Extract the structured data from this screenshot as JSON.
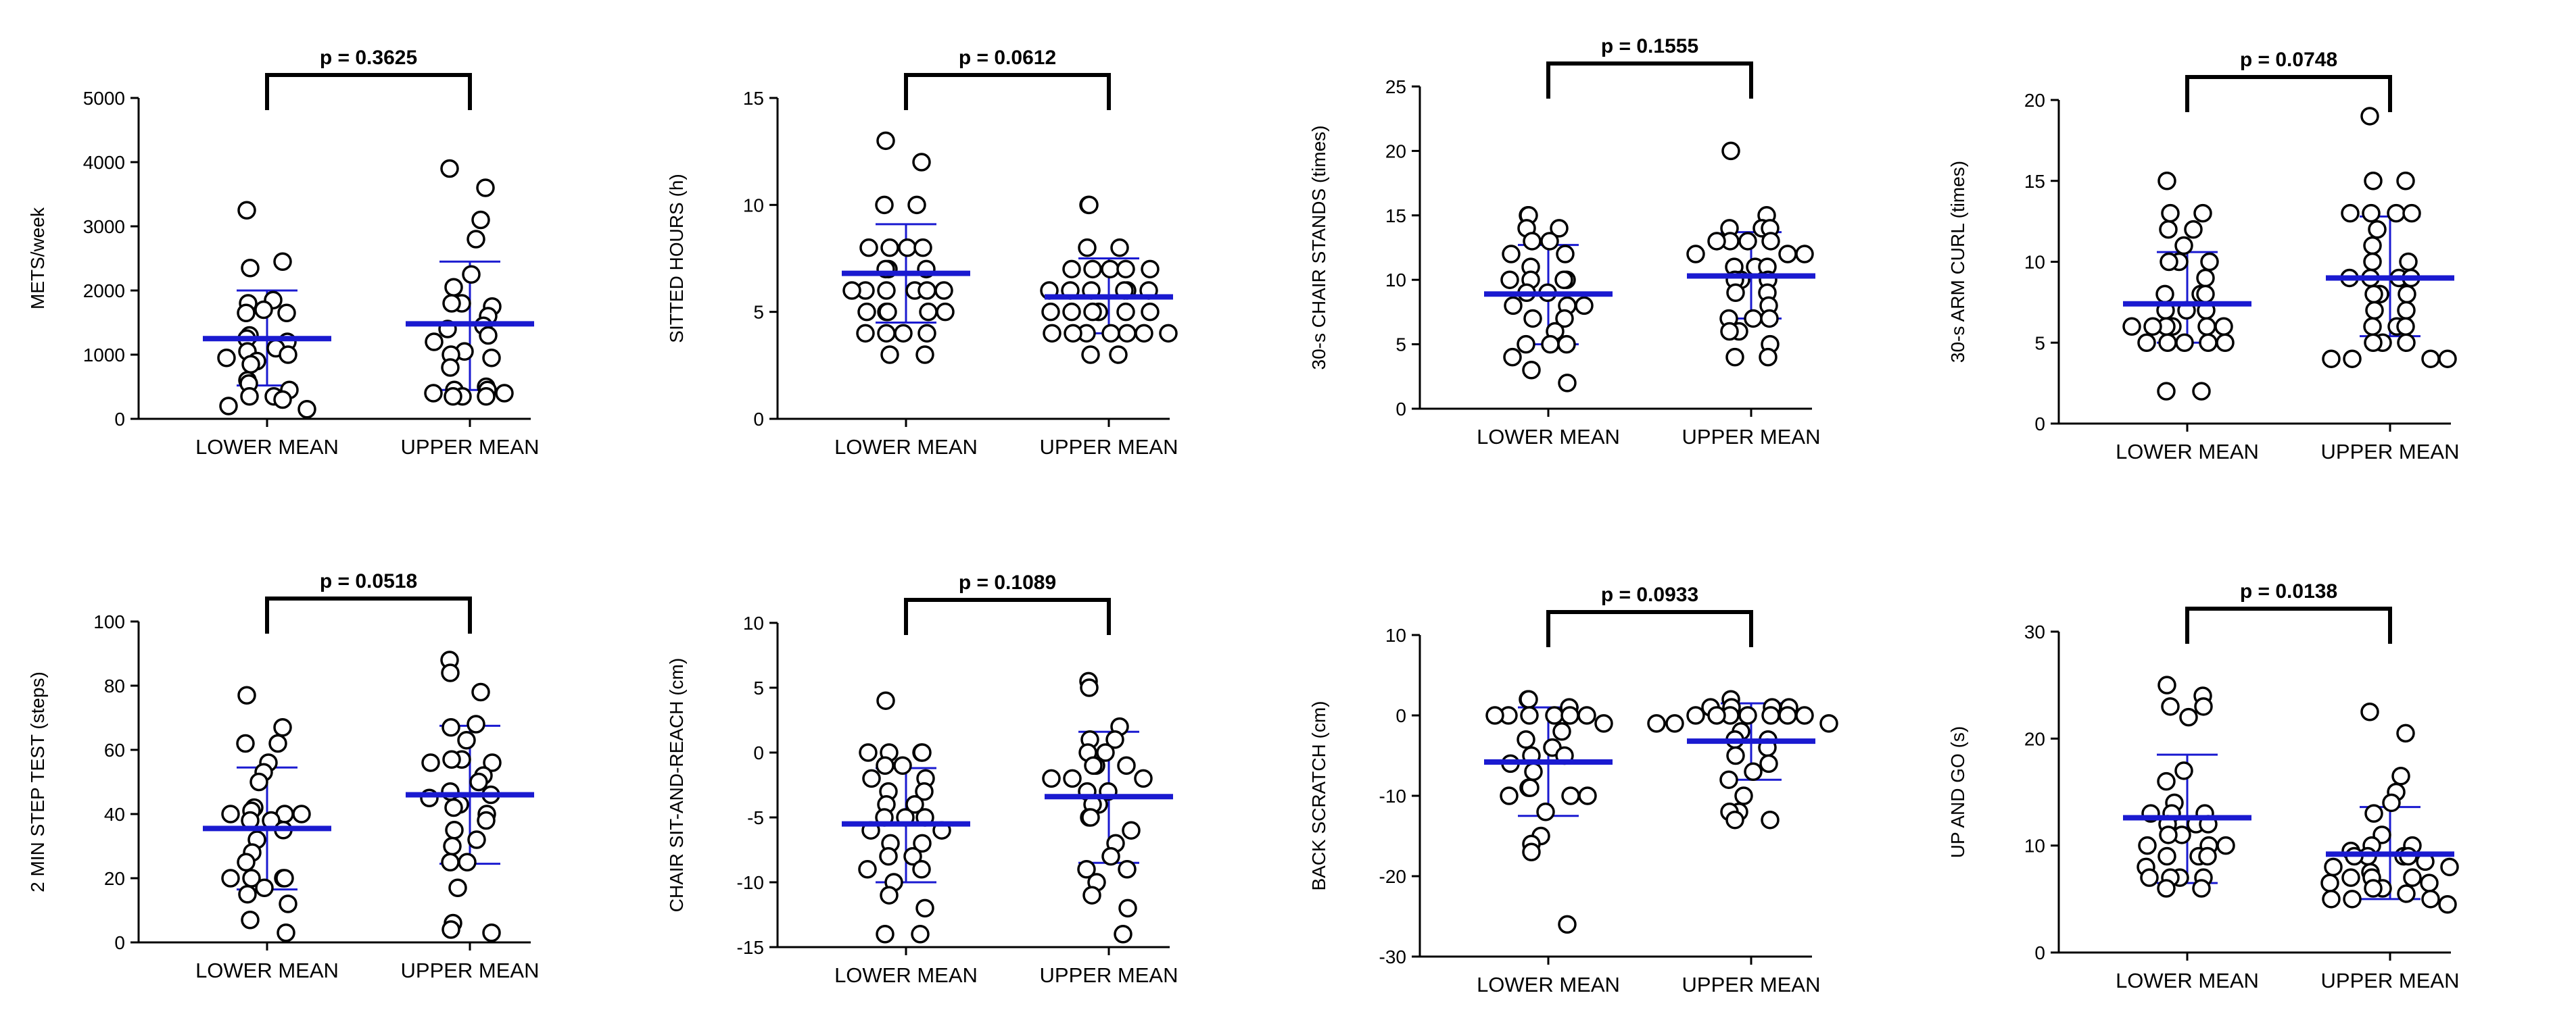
{
  "chart_data": [
    {
      "type": "scatter",
      "ylabel": "METS/week",
      "ylim": [
        0,
        5000
      ],
      "yticks": [
        0,
        1000,
        2000,
        3000,
        4000,
        5000
      ],
      "categories": [
        "LOWER MEAN",
        "UPPER MEAN"
      ],
      "p_label": "p = 0.3625",
      "groups": [
        {
          "name": "LOWER MEAN",
          "mean": 1250,
          "sd_low": 520,
          "sd_high": 2000,
          "points": [
            3250,
            2450,
            2350,
            1850,
            1800,
            1700,
            1650,
            1650,
            1300,
            1250,
            1200,
            1100,
            1050,
            1000,
            950,
            900,
            850,
            600,
            550,
            450,
            350,
            350,
            300,
            200,
            150
          ]
        },
        {
          "name": "UPPER MEAN",
          "mean": 1480,
          "sd_low": 450,
          "sd_high": 2450,
          "points": [
            3900,
            3600,
            3100,
            2800,
            2250,
            2050,
            1800,
            1800,
            1750,
            1600,
            1450,
            1400,
            1300,
            1200,
            1050,
            1000,
            950,
            800,
            500,
            450,
            450,
            400,
            400,
            350,
            350,
            350
          ]
        }
      ]
    },
    {
      "type": "scatter",
      "ylabel": "SITTED HOURS (h)",
      "ylim": [
        0,
        15
      ],
      "yticks": [
        0,
        5,
        10,
        15
      ],
      "categories": [
        "LOWER MEAN",
        "UPPER MEAN"
      ],
      "p_label": "p = 0.0612",
      "groups": [
        {
          "name": "LOWER MEAN",
          "mean": 6.8,
          "sd_low": 4.5,
          "sd_high": 9.1,
          "points": [
            13,
            12,
            10,
            10,
            8,
            8,
            8,
            8,
            7,
            7,
            7,
            6,
            6,
            6,
            6,
            6,
            6,
            5,
            5,
            5,
            5,
            5,
            4,
            4,
            4,
            4,
            3,
            3
          ]
        },
        {
          "name": "UPPER MEAN",
          "mean": 5.7,
          "sd_low": 4.0,
          "sd_high": 7.5,
          "points": [
            10,
            10,
            8,
            8,
            7,
            7,
            7,
            7,
            7,
            6,
            6,
            6,
            6,
            6,
            6,
            5,
            5,
            5,
            5,
            5,
            5,
            4,
            4,
            4,
            4,
            4,
            4,
            4,
            3,
            3
          ]
        }
      ]
    },
    {
      "type": "scatter",
      "ylabel": "30-s CHAIR STANDS (times)",
      "ylim": [
        0,
        25
      ],
      "yticks": [
        0,
        5,
        10,
        15,
        20,
        25
      ],
      "categories": [
        "LOWER MEAN",
        "UPPER MEAN"
      ],
      "p_label": "p = 0.1555",
      "groups": [
        {
          "name": "LOWER MEAN",
          "mean": 8.9,
          "sd_low": 5.0,
          "sd_high": 12.7,
          "points": [
            15,
            15,
            14,
            14,
            13,
            13,
            12,
            12,
            11,
            10,
            10,
            10,
            10,
            9,
            9,
            8,
            8,
            8,
            7,
            7,
            6,
            5,
            5,
            5,
            4,
            3,
            2
          ]
        },
        {
          "name": "UPPER MEAN",
          "mean": 10.3,
          "sd_low": 7.0,
          "sd_high": 13.7,
          "points": [
            20,
            15,
            14,
            14,
            14,
            13,
            13,
            13,
            13,
            12,
            12,
            12,
            11,
            11,
            11,
            10,
            10,
            10,
            9,
            9,
            8,
            7,
            7,
            7,
            6,
            6,
            5,
            4,
            4
          ]
        }
      ]
    },
    {
      "type": "scatter",
      "ylabel": "30-s ARM CURL (times)",
      "ylim": [
        0,
        20
      ],
      "yticks": [
        0,
        5,
        10,
        15,
        20
      ],
      "categories": [
        "LOWER MEAN",
        "UPPER MEAN"
      ],
      "p_label": "p = 0.0748",
      "groups": [
        {
          "name": "LOWER MEAN",
          "mean": 7.4,
          "sd_low": 5.0,
          "sd_high": 10.6,
          "points": [
            15,
            13,
            13,
            12,
            12,
            11,
            10,
            10,
            10,
            9,
            8,
            8,
            8,
            7,
            7,
            7,
            6,
            6,
            6,
            6,
            6,
            6,
            5,
            5,
            5,
            5,
            5,
            2,
            2
          ]
        },
        {
          "name": "UPPER MEAN",
          "mean": 9.0,
          "sd_low": 5.4,
          "sd_high": 12.8,
          "points": [
            19,
            15,
            15,
            13,
            13,
            13,
            13,
            12,
            11,
            10,
            10,
            9,
            9,
            9,
            9,
            8,
            8,
            8,
            7,
            7,
            6,
            6,
            6,
            5,
            5,
            5,
            4,
            4,
            4,
            4
          ]
        }
      ]
    },
    {
      "type": "scatter",
      "ylabel": "2 MIN STEP TEST (steps)",
      "ylim": [
        0,
        100
      ],
      "yticks": [
        0,
        20,
        40,
        60,
        80,
        100
      ],
      "categories": [
        "LOWER MEAN",
        "UPPER MEAN"
      ],
      "p_label": "p = 0.0518",
      "groups": [
        {
          "name": "LOWER MEAN",
          "mean": 35.5,
          "sd_low": 16.5,
          "sd_high": 54.5,
          "points": [
            77,
            67,
            62,
            62,
            56,
            53,
            50,
            42,
            41,
            40,
            40,
            40,
            38,
            38,
            35,
            32,
            28,
            25,
            20,
            20,
            20,
            20,
            17,
            15,
            12,
            7,
            3
          ]
        },
        {
          "name": "UPPER MEAN",
          "mean": 46.0,
          "sd_low": 24.5,
          "sd_high": 67.5,
          "points": [
            88,
            84,
            78,
            68,
            67,
            63,
            57,
            57,
            56,
            56,
            52,
            50,
            47,
            46,
            45,
            43,
            42,
            40,
            38,
            35,
            32,
            30,
            25,
            25,
            17,
            6,
            4,
            3
          ]
        }
      ]
    },
    {
      "type": "scatter",
      "ylabel": "CHAIR SIT-AND-REACH (cm)",
      "ylim": [
        -15,
        10
      ],
      "yticks": [
        -15,
        -10,
        -5,
        0,
        5,
        10
      ],
      "categories": [
        "LOWER MEAN",
        "UPPER MEAN"
      ],
      "p_label": "p = 0.1089",
      "groups": [
        {
          "name": "LOWER MEAN",
          "mean": -5.5,
          "sd_low": -10.0,
          "sd_high": -1.2,
          "points": [
            4,
            0,
            0,
            0,
            0,
            -1,
            -1,
            -2,
            -2,
            -3,
            -3,
            -4,
            -4,
            -5,
            -5,
            -5,
            -6,
            -6,
            -7,
            -7,
            -8,
            -8,
            -9,
            -9,
            -10,
            -11,
            -12,
            -14,
            -14
          ]
        },
        {
          "name": "UPPER MEAN",
          "mean": -3.4,
          "sd_low": -8.5,
          "sd_high": 1.6,
          "points": [
            5.5,
            5,
            2,
            1,
            1,
            0,
            0,
            -1,
            -1,
            -1,
            -2,
            -2,
            -2,
            -3,
            -3,
            -4,
            -4,
            -5,
            -5,
            -6,
            -7,
            -8,
            -9,
            -9,
            -10,
            -11,
            -12,
            -14
          ]
        }
      ]
    },
    {
      "type": "scatter",
      "ylabel": "BACK SCRATCH (cm)",
      "ylim": [
        -30,
        10
      ],
      "yticks": [
        -30,
        -20,
        -10,
        0,
        10
      ],
      "categories": [
        "LOWER MEAN",
        "UPPER MEAN"
      ],
      "p_label": "p = 0.0933",
      "groups": [
        {
          "name": "LOWER MEAN",
          "mean": -5.8,
          "sd_low": -12.5,
          "sd_high": 1.0,
          "points": [
            2,
            2,
            1,
            0,
            0,
            0,
            0,
            0,
            0,
            -1,
            -2,
            -3,
            -4,
            -5,
            -5,
            -6,
            -7,
            -9,
            -9,
            -10,
            -10,
            -10,
            -12,
            -15,
            -16,
            -17,
            -26
          ]
        },
        {
          "name": "UPPER MEAN",
          "mean": -3.2,
          "sd_low": -8.0,
          "sd_high": 1.5,
          "points": [
            2,
            1,
            1,
            1,
            1,
            0,
            0,
            0,
            0,
            0,
            0,
            0,
            -1,
            -1,
            -1,
            -2,
            -3,
            -3,
            -4,
            -5,
            -6,
            -7,
            -8,
            -10,
            -12,
            -12,
            -13,
            -13
          ]
        }
      ]
    },
    {
      "type": "scatter",
      "ylabel": "UP AND GO (s)",
      "ylim": [
        0,
        30
      ],
      "yticks": [
        0,
        10,
        20,
        30
      ],
      "categories": [
        "LOWER MEAN",
        "UPPER MEAN"
      ],
      "p_label": "p = 0.0138",
      "groups": [
        {
          "name": "LOWER MEAN",
          "mean": 12.6,
          "sd_low": 6.5,
          "sd_high": 18.5,
          "points": [
            25,
            24,
            23,
            23,
            22,
            17,
            16,
            14,
            13,
            13,
            13,
            12,
            12,
            12,
            11,
            11,
            10,
            10,
            10,
            9,
            9,
            9,
            8,
            7,
            7,
            7,
            7,
            6,
            6
          ]
        },
        {
          "name": "UPPER MEAN",
          "mean": 9.2,
          "sd_low": 5.0,
          "sd_high": 13.6,
          "points": [
            22.5,
            20.5,
            16.5,
            15,
            14,
            13,
            11,
            10,
            10,
            9.5,
            9,
            9,
            9,
            9,
            8.5,
            8,
            8,
            7.5,
            7,
            7,
            7,
            6.5,
            6.5,
            6,
            6,
            5.5,
            5,
            5,
            5,
            4.5
          ]
        }
      ]
    }
  ]
}
